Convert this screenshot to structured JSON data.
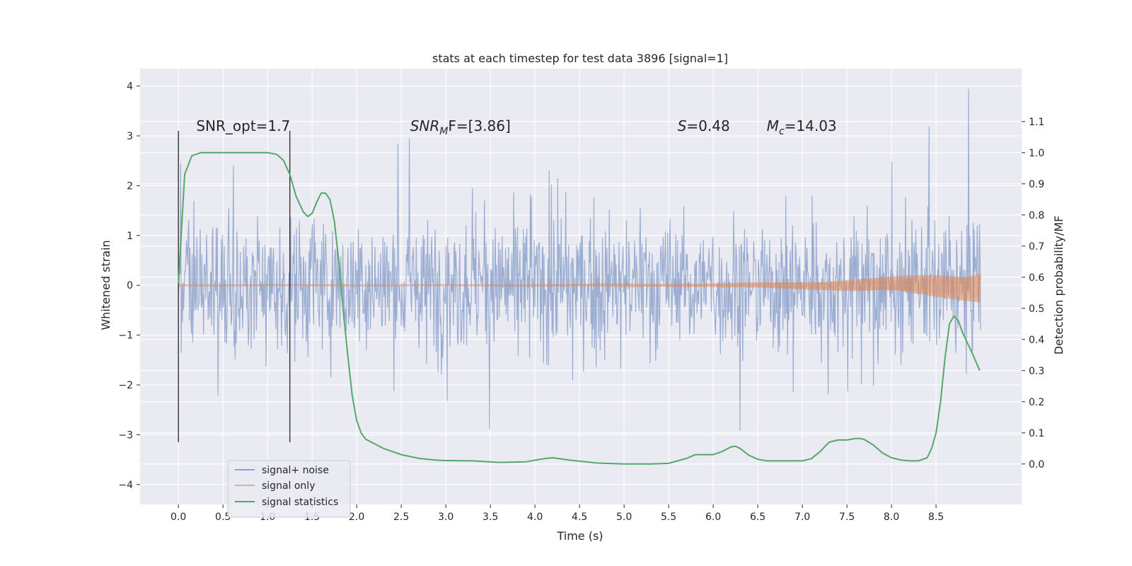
{
  "chart_data": {
    "type": "line",
    "title": "stats at each timestep for test data 3896 [signal=1]",
    "xlabel": "Time (s)",
    "ylabel": "Whitened strain",
    "y2label": "Detection probability/MF",
    "xlim": [
      -0.43,
      9.46
    ],
    "ylim": [
      -4.4,
      4.35
    ],
    "y2lim": [
      -0.13,
      1.27
    ],
    "x_ticks": [
      0.0,
      0.5,
      1.0,
      1.5,
      2.0,
      2.5,
      3.0,
      3.5,
      4.0,
      4.5,
      5.0,
      5.5,
      6.0,
      6.5,
      7.0,
      7.5,
      8.0,
      8.5
    ],
    "x_tick_labels": [
      "0.0",
      "0.5",
      "1.0",
      "1.5",
      "2.0",
      "2.5",
      "3.0",
      "3.5",
      "4.0",
      "4.5",
      "5.0",
      "5.5",
      "6.0",
      "6.5",
      "7.0",
      "7.5",
      "8.0",
      "8.5"
    ],
    "y_ticks": [
      -4,
      -3,
      -2,
      -1,
      0,
      1,
      2,
      3,
      4
    ],
    "y_tick_labels": [
      "−4",
      "−3",
      "−2",
      "−1",
      "0",
      "1",
      "2",
      "3",
      "4"
    ],
    "y2_ticks": [
      0.0,
      0.1,
      0.2,
      0.3,
      0.4,
      0.5,
      0.6,
      0.7,
      0.8,
      0.9,
      1.0,
      1.1
    ],
    "y2_tick_labels": [
      "0.0",
      "0.1",
      "0.2",
      "0.3",
      "0.4",
      "0.5",
      "0.6",
      "0.7",
      "0.8",
      "0.9",
      "1.0",
      "1.1"
    ],
    "grid": true,
    "legend_position": "lower-left",
    "series": [
      {
        "name": "signal+ noise",
        "color": "#4c72b0",
        "note_duration_s": [
          0.0,
          9.0
        ],
        "typical_range": [
          -1.8,
          1.8
        ],
        "peak_range": [
          -4.0,
          3.95
        ]
      },
      {
        "name": "signal only",
        "color": "#dd8452",
        "duration_s": [
          0.0,
          9.0
        ],
        "range_start": [
          -0.01,
          0.01
        ],
        "range_end": [
          -0.2,
          0.35
        ]
      },
      {
        "name": "signal statistics",
        "color": "#55a868",
        "axis": "right",
        "x": [
          0.0,
          0.07,
          0.15,
          0.25,
          0.4,
          0.6,
          0.8,
          1.0,
          1.1,
          1.18,
          1.25,
          1.32,
          1.4,
          1.45,
          1.5,
          1.55,
          1.6,
          1.65,
          1.7,
          1.75,
          1.8,
          1.85,
          1.9,
          1.95,
          2.0,
          2.05,
          2.1,
          2.2,
          2.3,
          2.5,
          2.7,
          2.9,
          3.0,
          3.3,
          3.6,
          3.9,
          4.1,
          4.2,
          4.4,
          4.7,
          5.0,
          5.3,
          5.5,
          5.7,
          5.8,
          5.9,
          6.0,
          6.1,
          6.2,
          6.25,
          6.3,
          6.4,
          6.5,
          6.6,
          6.8,
          7.0,
          7.1,
          7.2,
          7.3,
          7.4,
          7.5,
          7.6,
          7.65,
          7.7,
          7.8,
          7.9,
          8.0,
          8.1,
          8.2,
          8.3,
          8.4,
          8.45,
          8.5,
          8.55,
          8.6,
          8.65,
          8.7,
          8.75,
          8.8,
          8.9,
          8.99
        ],
        "y": [
          0.58,
          0.93,
          0.99,
          1.0,
          1.0,
          1.0,
          1.0,
          1.0,
          0.995,
          0.975,
          0.93,
          0.86,
          0.81,
          0.795,
          0.805,
          0.84,
          0.87,
          0.87,
          0.85,
          0.78,
          0.65,
          0.49,
          0.35,
          0.22,
          0.14,
          0.1,
          0.08,
          0.065,
          0.05,
          0.03,
          0.018,
          0.012,
          0.011,
          0.01,
          0.005,
          0.007,
          0.017,
          0.02,
          0.012,
          0.003,
          0.0,
          0.0,
          0.002,
          0.018,
          0.03,
          0.03,
          0.03,
          0.04,
          0.055,
          0.057,
          0.05,
          0.028,
          0.015,
          0.01,
          0.01,
          0.01,
          0.017,
          0.04,
          0.07,
          0.077,
          0.077,
          0.082,
          0.082,
          0.078,
          0.06,
          0.035,
          0.02,
          0.013,
          0.01,
          0.01,
          0.02,
          0.05,
          0.1,
          0.2,
          0.34,
          0.45,
          0.475,
          0.46,
          0.42,
          0.36,
          0.3
        ]
      }
    ],
    "vlines": [
      {
        "x": 0.0,
        "ymin": -3.15,
        "ymax": 3.1
      },
      {
        "x": 1.25,
        "ymin": -3.15,
        "ymax": 3.1
      }
    ],
    "annotations": [
      {
        "text": "SNR_opt=1.7",
        "x": 0.2,
        "y": 3.1
      },
      {
        "text": "SNR",
        "sub": "M",
        "rest": "F=[3.86]",
        "x": 2.6,
        "y": 3.1,
        "italic": true
      },
      {
        "text": "S",
        "rest": "=0.48",
        "x": 5.6,
        "y": 3.1,
        "italic": true
      },
      {
        "text": "M",
        "sub": "c",
        "rest": "=14.03",
        "x": 6.6,
        "y": 3.1,
        "italic": true
      }
    ],
    "colors": {
      "axes_bg": "#eaeaf2",
      "grid": "#ffffff",
      "noise": "#4c72b0",
      "signal": "#dd8452",
      "stat": "#55a868",
      "vline": "#333333"
    }
  }
}
